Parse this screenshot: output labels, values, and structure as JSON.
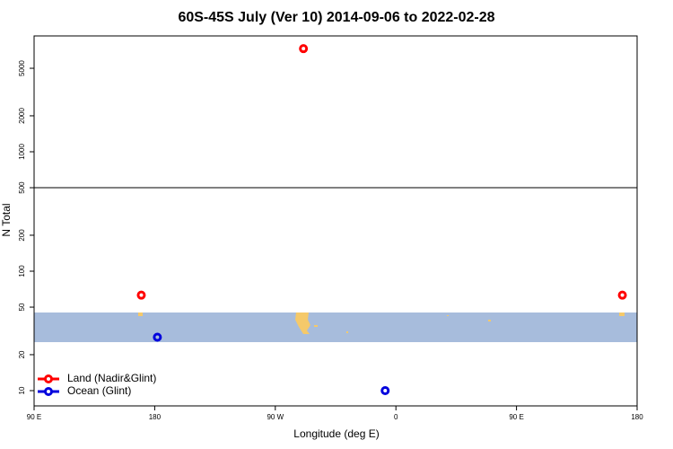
{
  "chart_data": {
    "type": "scatter",
    "title": "60S-45S July (Ver 10)   2014-09-06 to 2022-02-28",
    "xlabel": "Longitude (deg E)",
    "ylabel": "N Total",
    "xlim": [
      90,
      540
    ],
    "xticks": [
      {
        "value": 90,
        "label": "90 E"
      },
      {
        "value": 180,
        "label": "180"
      },
      {
        "value": 270,
        "label": "90 W"
      },
      {
        "value": 360,
        "label": "0"
      },
      {
        "value": 450,
        "label": "90 E"
      },
      {
        "value": 540,
        "label": "180"
      }
    ],
    "ylim": [
      7.45,
      9330
    ],
    "ylog": true,
    "yticks": [
      10,
      20,
      50,
      100,
      200,
      500,
      1000,
      2000,
      5000
    ],
    "hline": 500,
    "legend": "bottomleft",
    "series": [
      {
        "name": "Land (Nadir&Glint)",
        "color": "#ff0000",
        "x": [
          170,
          291,
          529
        ],
        "values": [
          63,
          7300,
          63
        ]
      },
      {
        "name": "Ocean (Glint)",
        "color": "#0000dd",
        "x": [
          182,
          352
        ],
        "values": [
          28,
          10
        ]
      }
    ]
  }
}
